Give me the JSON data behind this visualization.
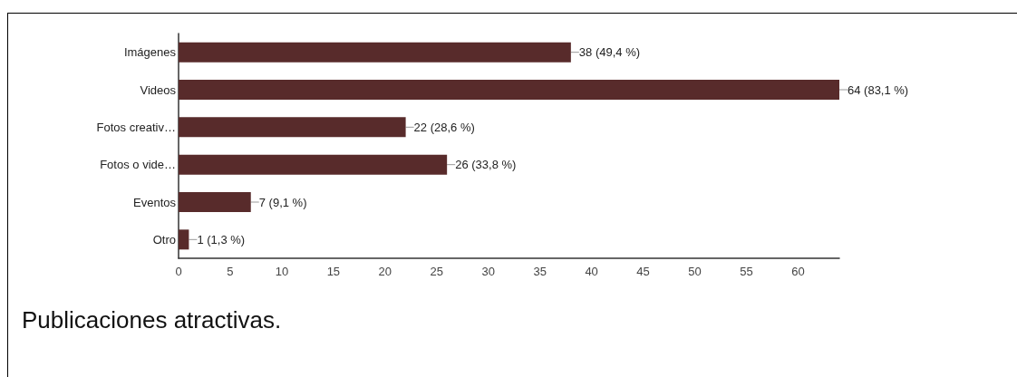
{
  "chart_data": {
    "type": "bar",
    "orientation": "horizontal",
    "title": "Publicaciones atractivas.",
    "categories": [
      "Imágenes",
      "Videos",
      "Fotos creativ…",
      "Fotos o vide…",
      "Eventos",
      "Otro"
    ],
    "values": [
      38,
      64,
      22,
      26,
      7,
      1
    ],
    "value_labels": [
      "38 (49,4 %)",
      "64 (83,1 %)",
      "22 (28,6 %)",
      "26 (33,8 %)",
      "7 (9,1 %)",
      "1 (1,3 %)"
    ],
    "color": "#582b2b",
    "xlim": [
      0,
      64
    ],
    "xticks": [
      0,
      5,
      10,
      15,
      20,
      25,
      30,
      35,
      40,
      45,
      50,
      55,
      60
    ]
  }
}
